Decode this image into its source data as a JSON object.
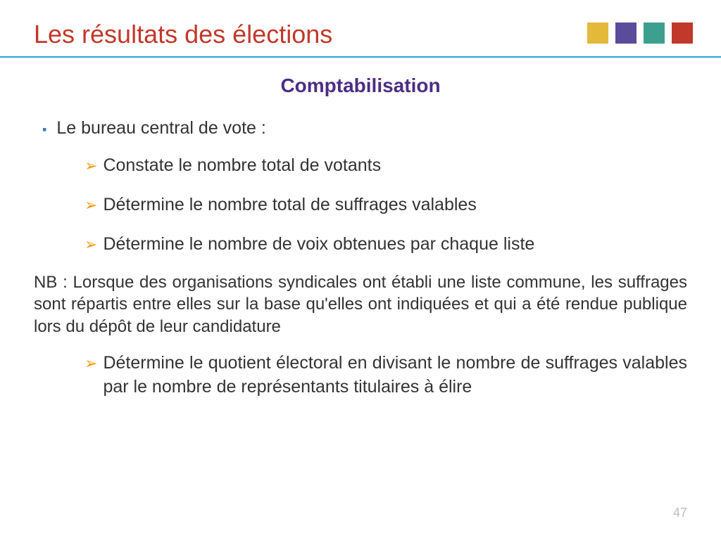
{
  "header": {
    "title": "Les résultats des élections",
    "title_color": "#c0392b",
    "squares": [
      "#e2b93b",
      "#5a4b9b",
      "#3da08f",
      "#c0392b"
    ]
  },
  "subtitle": {
    "text": "Comptabilisation",
    "color": "#4b2e83"
  },
  "main_bullet": {
    "marker_color": "#2f79c4",
    "text": "Le bureau central de vote :"
  },
  "sub_items": [
    {
      "text": "Constate le nombre total de votants"
    },
    {
      "text": "Détermine le nombre total de suffrages valables"
    },
    {
      "text": "Détermine le nombre de voix obtenues par chaque liste"
    }
  ],
  "note": "NB : Lorsque des organisations syndicales ont établi une liste commune, les suffrages sont répartis entre elles sur la base qu'elles ont indiquées et qui a été rendue publique lors du dépôt de leur candidature",
  "sub_item_after": {
    "text": "Détermine le quotient électoral en divisant le nombre de suffrages valables par le nombre de représentants titulaires à élire"
  },
  "chevron_color": "#f39c12",
  "divider_color": "#2fa2d8",
  "page_number": "47",
  "font_family": "Trebuchet MS"
}
